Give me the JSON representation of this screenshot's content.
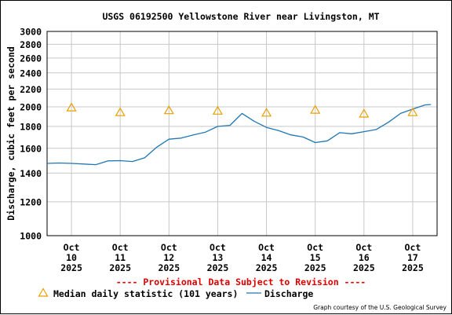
{
  "chart_data": {
    "type": "line",
    "title": "USGS 06192500 Yellowstone River near Livingston, MT",
    "ylabel": "Discharge, cubic feet per second",
    "xlabel": "",
    "y_scale": "log",
    "ylim": [
      1000,
      3000
    ],
    "y_ticks": [
      "3000",
      "2800",
      "2600",
      "2400",
      "2200",
      "2000",
      "1800",
      "1600",
      "1400",
      "1200",
      "1000"
    ],
    "x_ticks": [
      {
        "month": "Oct",
        "day": "10",
        "year": "2025"
      },
      {
        "month": "Oct",
        "day": "11",
        "year": "2025"
      },
      {
        "month": "Oct",
        "day": "12",
        "year": "2025"
      },
      {
        "month": "Oct",
        "day": "13",
        "year": "2025"
      },
      {
        "month": "Oct",
        "day": "14",
        "year": "2025"
      },
      {
        "month": "Oct",
        "day": "15",
        "year": "2025"
      },
      {
        "month": "Oct",
        "day": "16",
        "year": "2025"
      },
      {
        "month": "Oct",
        "day": "17",
        "year": "2025"
      }
    ],
    "xlim_days": [
      "2025-10-09T12:00",
      "2025-10-17T12:00"
    ],
    "grid": true,
    "series": [
      {
        "name": "Discharge",
        "color": "#1f77b4",
        "points": [
          [
            "2025-10-09T12:00",
            1475
          ],
          [
            "2025-10-09T18:00",
            1478
          ],
          [
            "2025-10-10T00:00",
            1475
          ],
          [
            "2025-10-10T06:00",
            1470
          ],
          [
            "2025-10-10T12:00",
            1465
          ],
          [
            "2025-10-10T15:00",
            1480
          ],
          [
            "2025-10-10T18:00",
            1495
          ],
          [
            "2025-10-11T00:00",
            1497
          ],
          [
            "2025-10-11T06:00",
            1490
          ],
          [
            "2025-10-11T12:00",
            1520
          ],
          [
            "2025-10-11T18:00",
            1610
          ],
          [
            "2025-10-12T00:00",
            1680
          ],
          [
            "2025-10-12T06:00",
            1690
          ],
          [
            "2025-10-12T12:00",
            1720
          ],
          [
            "2025-10-12T18:00",
            1745
          ],
          [
            "2025-10-13T00:00",
            1800
          ],
          [
            "2025-10-13T06:00",
            1810
          ],
          [
            "2025-10-13T12:00",
            1930
          ],
          [
            "2025-10-13T18:00",
            1850
          ],
          [
            "2025-10-14T00:00",
            1790
          ],
          [
            "2025-10-14T06:00",
            1760
          ],
          [
            "2025-10-14T12:00",
            1720
          ],
          [
            "2025-10-14T18:00",
            1700
          ],
          [
            "2025-10-15T00:00",
            1650
          ],
          [
            "2025-10-15T06:00",
            1665
          ],
          [
            "2025-10-15T12:00",
            1740
          ],
          [
            "2025-10-15T18:00",
            1730
          ],
          [
            "2025-10-16T00:00",
            1750
          ],
          [
            "2025-10-16T06:00",
            1770
          ],
          [
            "2025-10-16T12:00",
            1840
          ],
          [
            "2025-10-16T18:00",
            1930
          ],
          [
            "2025-10-17T00:00",
            1975
          ],
          [
            "2025-10-17T06:00",
            2020
          ],
          [
            "2025-10-17T09:00",
            2025
          ]
        ]
      },
      {
        "name": "Median daily statistic (101 years)",
        "color": "#e8a000",
        "marker": "triangle",
        "points": [
          [
            "2025-10-10T00:00",
            1990
          ],
          [
            "2025-10-11T00:00",
            1940
          ],
          [
            "2025-10-12T00:00",
            1960
          ],
          [
            "2025-10-13T00:00",
            1955
          ],
          [
            "2025-10-14T00:00",
            1935
          ],
          [
            "2025-10-15T00:00",
            1965
          ],
          [
            "2025-10-16T00:00",
            1925
          ],
          [
            "2025-10-17T00:00",
            1940
          ]
        ]
      }
    ],
    "legend": [
      {
        "label": "Median daily statistic (101 years)",
        "symbol": "triangle",
        "color": "#e8a000"
      },
      {
        "label": "Discharge",
        "symbol": "line",
        "color": "#1f77b4"
      }
    ],
    "legend_placement": "bottom",
    "annotation": "---- Provisional Data Subject to Revision ----",
    "credit": "Graph courtesy of the U.S. Geological Survey"
  }
}
